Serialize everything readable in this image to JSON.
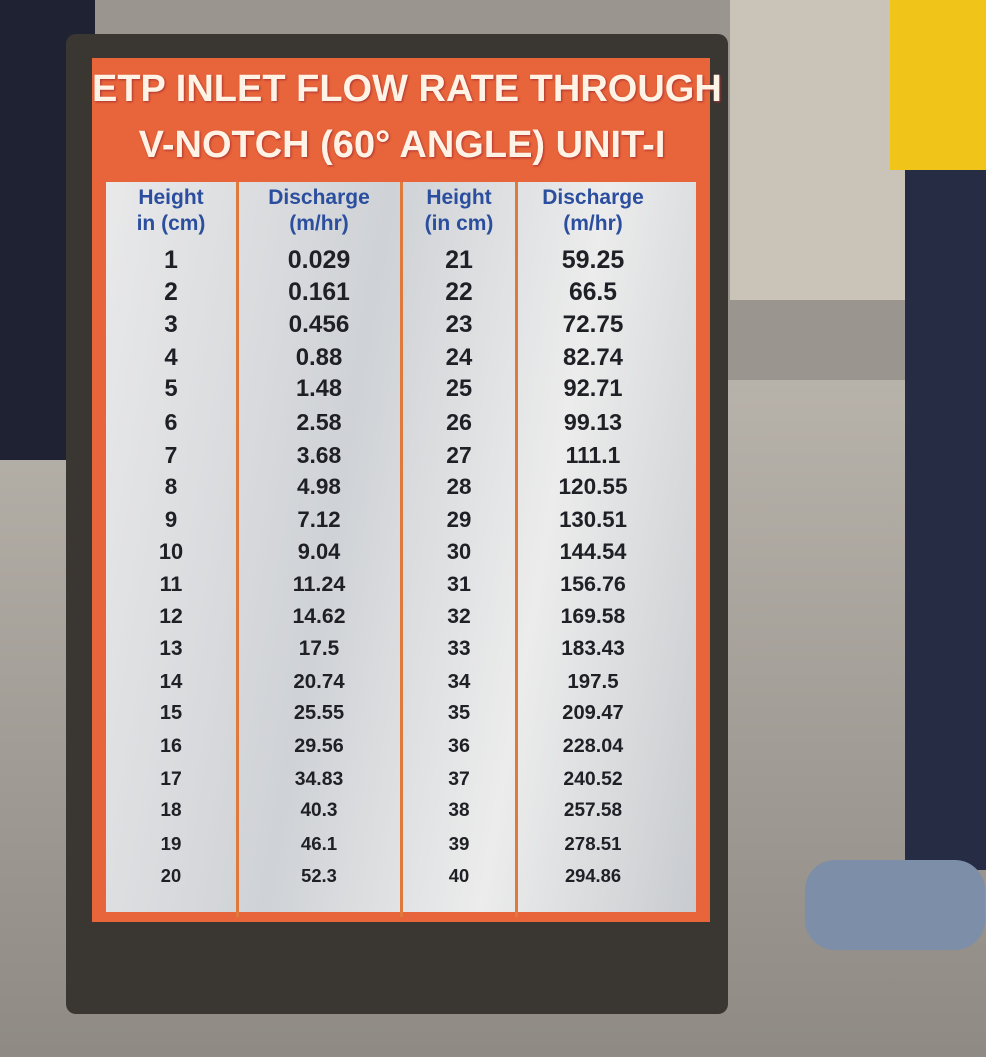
{
  "sign": {
    "title": [
      "ETP INLET FLOW RATE THROUGH",
      "V-NOTCH (60° ANGLE) UNIT-I"
    ],
    "table": {
      "headers": [
        [
          "Height",
          "in (cm)"
        ],
        [
          "Discharge",
          "(m/hr)"
        ],
        [
          "Height",
          "(in cm)"
        ],
        [
          "Discharge",
          "(m/hr)"
        ]
      ],
      "rows": [
        [
          "1",
          "0.029",
          "21",
          "59.25"
        ],
        [
          "2",
          "0.161",
          "22",
          "66.5"
        ],
        [
          "3",
          "0.456",
          "23",
          "72.75"
        ],
        [
          "4",
          "0.88",
          "24",
          "82.74"
        ],
        [
          "5",
          "1.48",
          "25",
          "92.71"
        ],
        [
          "6",
          "2.58",
          "26",
          "99.13"
        ],
        [
          "7",
          "3.68",
          "27",
          "111.1"
        ],
        [
          "8",
          "4.98",
          "28",
          "120.55"
        ],
        [
          "9",
          "7.12",
          "29",
          "130.51"
        ],
        [
          "10",
          "9.04",
          "30",
          "144.54"
        ],
        [
          "11",
          "11.24",
          "31",
          "156.76"
        ],
        [
          "12",
          "14.62",
          "32",
          "169.58"
        ],
        [
          "13",
          "17.5",
          "33",
          "183.43"
        ],
        [
          "14",
          "20.74",
          "34",
          "197.5"
        ],
        [
          "15",
          "25.55",
          "35",
          "209.47"
        ],
        [
          "16",
          "29.56",
          "36",
          "228.04"
        ],
        [
          "17",
          "34.83",
          "37",
          "240.52"
        ],
        [
          "18",
          "40.3",
          "38",
          "257.58"
        ],
        [
          "19",
          "46.1",
          "39",
          "278.51"
        ],
        [
          "20",
          "52.3",
          "40",
          "294.86"
        ]
      ]
    }
  }
}
